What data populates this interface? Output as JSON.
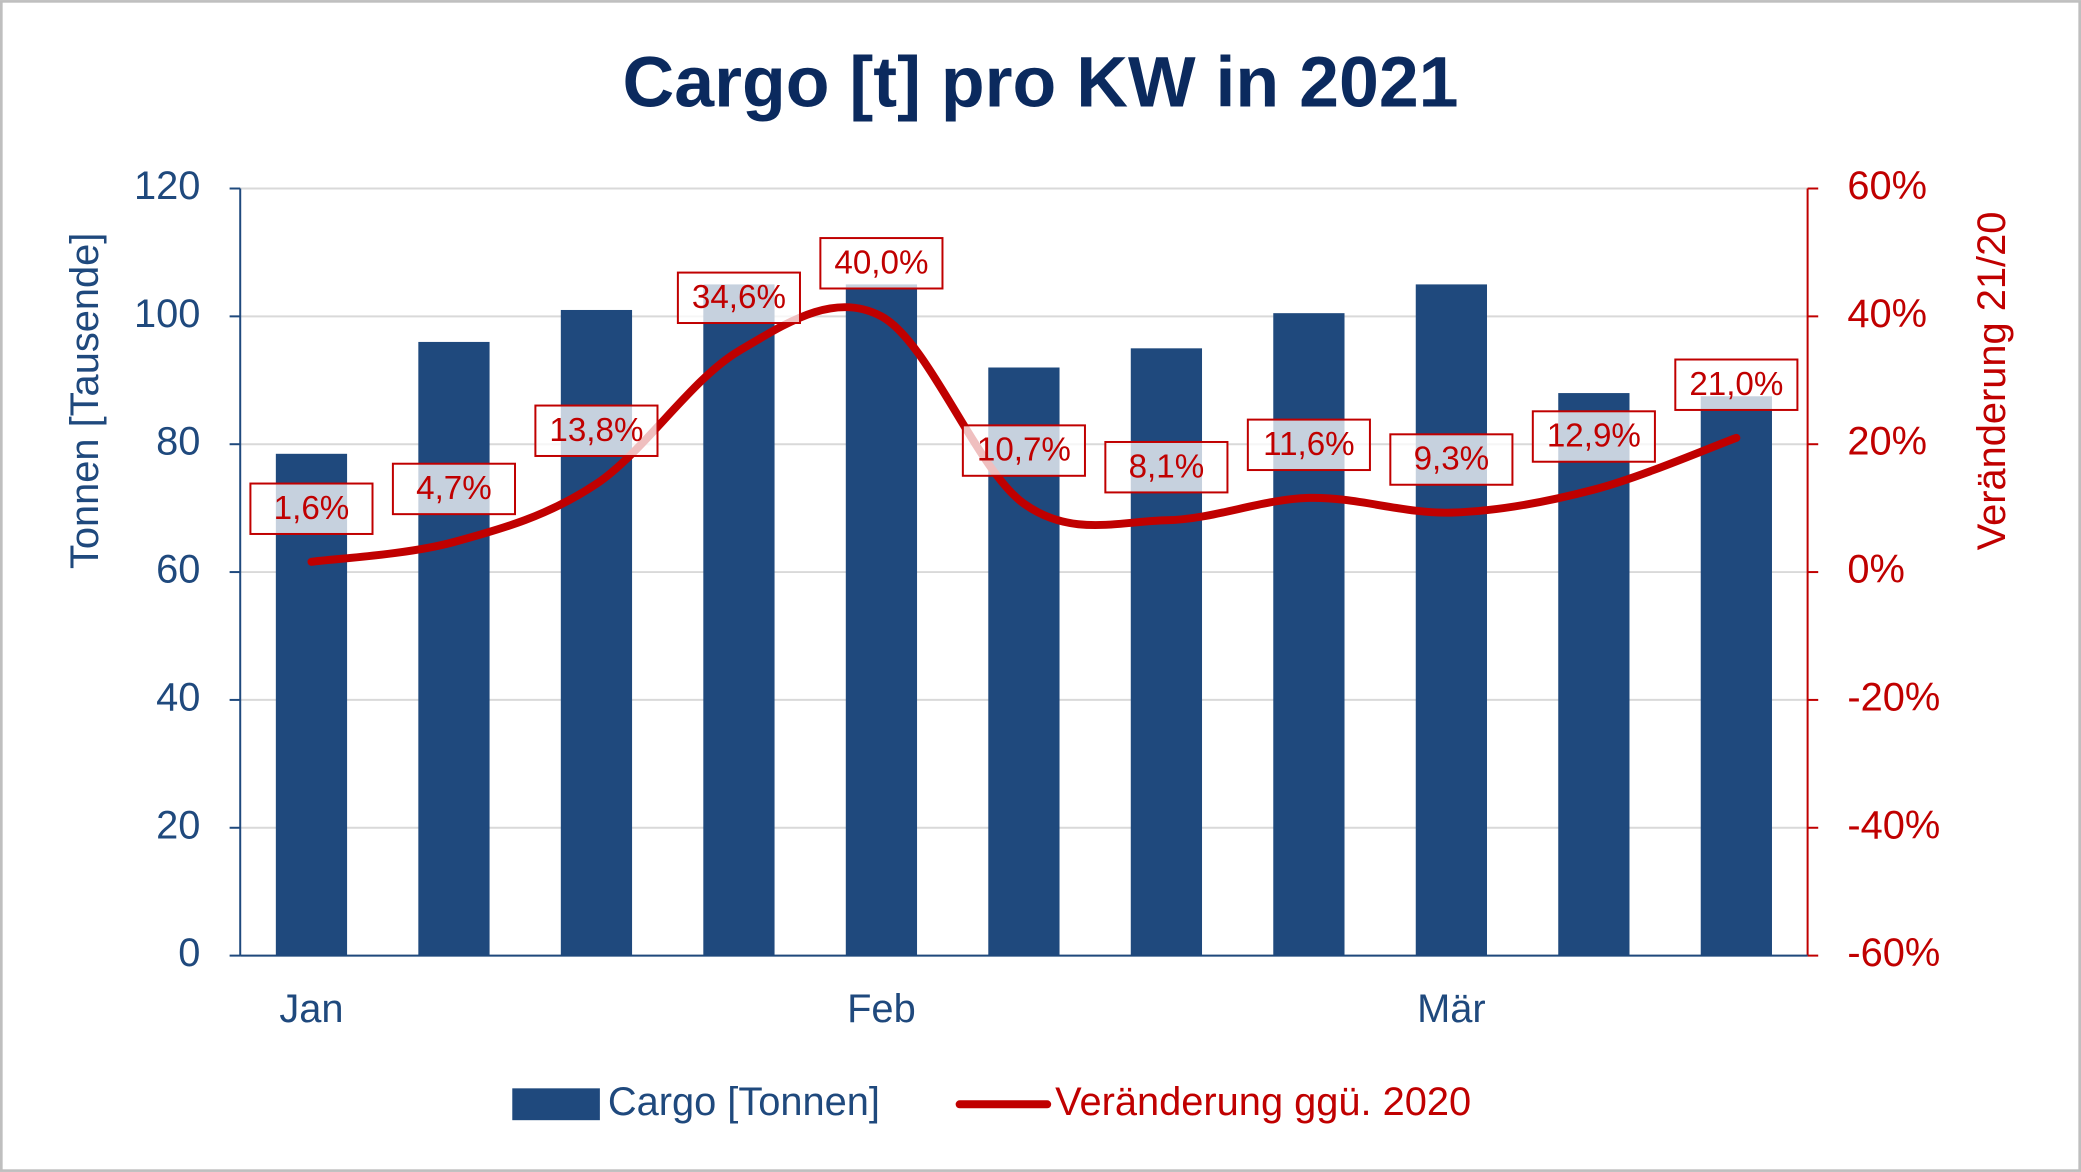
{
  "chart_data": {
    "type": "bar-line",
    "title": "Cargo [t] pro KW in 2021",
    "y_label": "Tonnen [Tausende]",
    "y2_label": "Veränderung 21/20",
    "categories": [
      "Jan",
      null,
      null,
      null,
      "Feb",
      null,
      null,
      null,
      "Mär",
      null,
      null
    ],
    "series": [
      {
        "name": "Cargo [Tonnen]",
        "type": "bar",
        "color": "#1f497d",
        "values": [
          78.5,
          96,
          101,
          105,
          105,
          92,
          95,
          100.5,
          105,
          88,
          87.5
        ]
      },
      {
        "name": "Veränderung ggü. 2020",
        "type": "line",
        "axis": "y2",
        "color": "#c00000",
        "values": [
          1.6,
          4.7,
          13.8,
          34.6,
          40.0,
          10.7,
          8.1,
          11.6,
          9.3,
          12.9,
          21.0
        ],
        "value_labels": [
          "1,6%",
          "4,7%",
          "13,8%",
          "34,6%",
          "40,0%",
          "10,7%",
          "8,1%",
          "11,6%",
          "9,3%",
          "12,9%",
          "21,0%"
        ]
      }
    ],
    "ylim": [
      0,
      120
    ],
    "yticks": [
      0,
      20,
      40,
      60,
      80,
      100,
      120
    ],
    "y2lim": [
      -60,
      60
    ],
    "y2ticks": [
      {
        "value": -60,
        "label": "-60%"
      },
      {
        "value": -40,
        "label": "-40%"
      },
      {
        "value": -20,
        "label": "-20%"
      },
      {
        "value": 0,
        "label": "0%"
      },
      {
        "value": 20,
        "label": "20%"
      },
      {
        "value": 40,
        "label": "40%"
      },
      {
        "value": 60,
        "label": "60%"
      }
    ],
    "grid": true,
    "legend": "bottom"
  }
}
